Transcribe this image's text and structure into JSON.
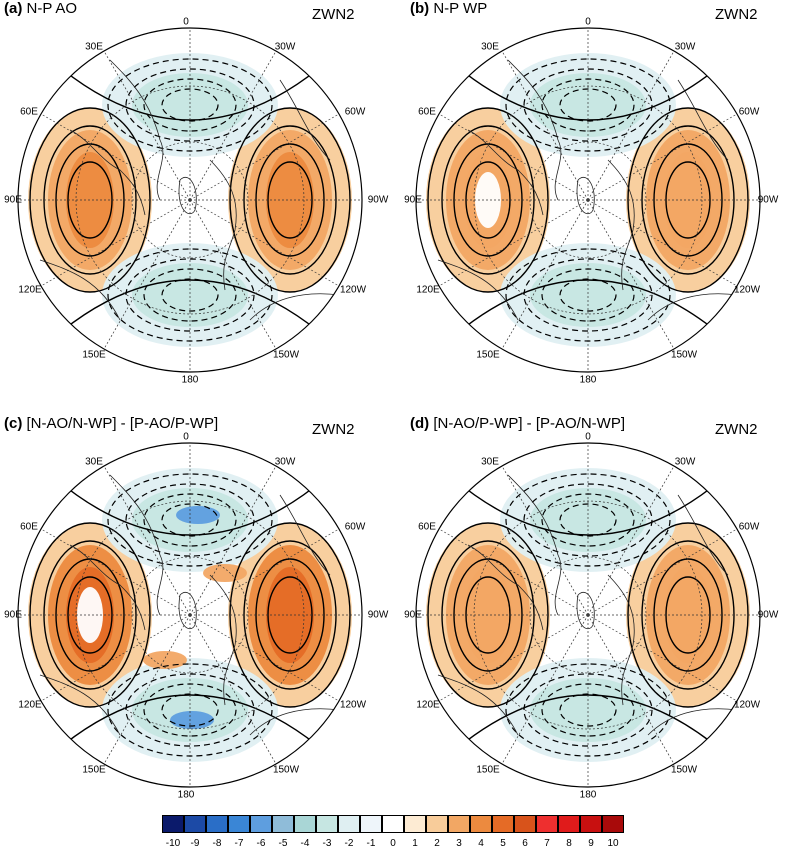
{
  "variable_label": "ZWN2",
  "panels": [
    {
      "letter": "(a)",
      "title": "N-P AO",
      "weights": {
        "pos": 0.8,
        "neg": 0.42,
        "lobe_pos": 0,
        "lobe_neg": 0
      }
    },
    {
      "letter": "(b)",
      "title": "N-P WP",
      "weights": {
        "pos": 0.55,
        "neg": 0.32,
        "lobe_pos": 0,
        "lobe_neg": 0
      }
    },
    {
      "letter": "(c)",
      "title": "[N-AO/N-WP] - [P-AO/P-WP]",
      "weights": {
        "pos": 0.92,
        "neg": 0.6,
        "lobe_pos": 0.45,
        "lobe_neg": 0.55
      }
    },
    {
      "letter": "(d)",
      "title": "[N-AO/P-WP] - [P-AO/N-WP]",
      "weights": {
        "pos": 0.48,
        "neg": 0.3,
        "lobe_pos": 0,
        "lobe_neg": 0
      }
    }
  ],
  "longitude_labels": {
    "top": "0",
    "upper_left": "30E",
    "upper_right": "30W",
    "mid_upper_left": "60E",
    "mid_upper_right": "60W",
    "left": "90E",
    "right": "90W",
    "mid_lower_left": "120E",
    "mid_lower_right": "120W",
    "lower_left": "150E",
    "lower_right": "150W",
    "bottom": "180"
  },
  "colorbar": {
    "labels": [
      "-10",
      "-9",
      "-8",
      "-7",
      "-6",
      "-5",
      "-4",
      "-3",
      "-2",
      "-1",
      "0",
      "1",
      "2",
      "3",
      "4",
      "5",
      "6",
      "7",
      "8",
      "9",
      "10"
    ],
    "colors": [
      "#0b1a6b",
      "#1c4aa6",
      "#2a6ec7",
      "#3a86d6",
      "#5e9edf",
      "#8fbcd9",
      "#a9d6d6",
      "#c6e6e2",
      "#dfeff2",
      "#eef5fa",
      "#ffffff",
      "#fdebd3",
      "#f8cc9a",
      "#f2a764",
      "#ec8a3f",
      "#e56b26",
      "#d8531b",
      "#ee2f2f",
      "#e01b1b",
      "#c81010",
      "#a80a0a"
    ]
  }
}
